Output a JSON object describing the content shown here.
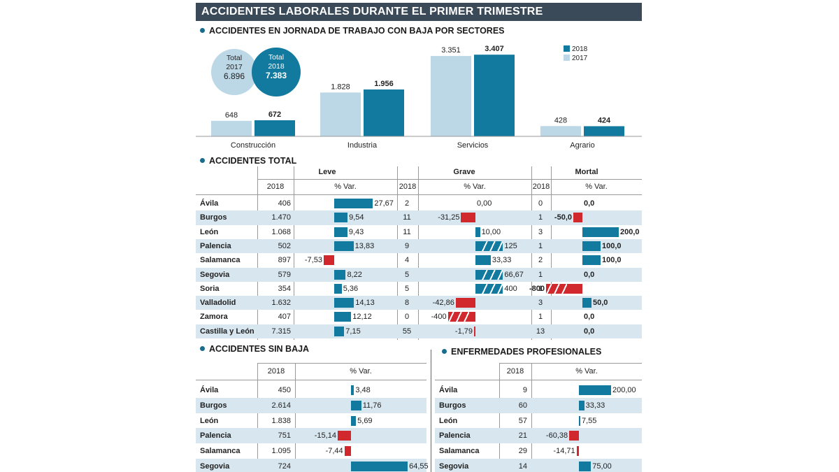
{
  "title": "ACCIDENTES LABORALES DURANTE EL PRIMER TRIMESTRE",
  "colors": {
    "y2018": "#137a9f",
    "y2017": "#bcd7e6",
    "negative": "#d0282c",
    "stripe": "#d7e6ef"
  },
  "chart_data": [
    {
      "type": "bar",
      "title": "ACCIDENTES EN JORNADA DE TRABAJO CON BAJA POR SECTORES",
      "categories": [
        "Construcción",
        "Industria",
        "Servicios",
        "Agrario"
      ],
      "series": [
        {
          "name": "2017",
          "values": [
            648,
            1828,
            3351,
            428
          ],
          "labels": [
            "648",
            "1.828",
            "3.351",
            "428"
          ]
        },
        {
          "name": "2018",
          "values": [
            672,
            1956,
            3407,
            424
          ],
          "labels": [
            "672",
            "1.956",
            "3.407",
            "424"
          ]
        }
      ],
      "legend": [
        "2018",
        "2017"
      ],
      "totals": [
        {
          "label": "Total",
          "year": "2017",
          "value": "6.896"
        },
        {
          "label": "Total",
          "year": "2018",
          "value": "7.383"
        }
      ]
    },
    {
      "type": "table",
      "title": "ACCIDENTES TOTAL",
      "groups": [
        "Leve",
        "Grave",
        "Mortal"
      ],
      "col_year": "2018",
      "col_var": "% Var.",
      "rows": [
        {
          "name": "Ávila",
          "leve": [
            "406",
            "27,67"
          ],
          "grave": [
            "2",
            "0,00"
          ],
          "mortal": [
            "0",
            "0,0"
          ]
        },
        {
          "name": "Burgos",
          "leve": [
            "1.470",
            "9,54"
          ],
          "grave": [
            "11",
            "-31,25"
          ],
          "mortal": [
            "1",
            "-50,0"
          ]
        },
        {
          "name": "León",
          "leve": [
            "1.068",
            "9,43"
          ],
          "grave": [
            "11",
            "10,00"
          ],
          "mortal": [
            "3",
            "200,0"
          ]
        },
        {
          "name": "Palencia",
          "leve": [
            "502",
            "13,83"
          ],
          "grave": [
            "9",
            "125"
          ],
          "mortal": [
            "1",
            "100,0"
          ]
        },
        {
          "name": "Salamanca",
          "leve": [
            "897",
            "-7,53"
          ],
          "grave": [
            "4",
            "33,33"
          ],
          "mortal": [
            "2",
            "100,0"
          ]
        },
        {
          "name": "Segovia",
          "leve": [
            "579",
            "8,22"
          ],
          "grave": [
            "5",
            "66,67"
          ],
          "mortal": [
            "1",
            "0,0"
          ]
        },
        {
          "name": "Soria",
          "leve": [
            "354",
            "5,36"
          ],
          "grave": [
            "5",
            "400"
          ],
          "mortal": [
            "1",
            "-800"
          ]
        },
        {
          "name": "Valladolid",
          "leve": [
            "1.632",
            "14,13"
          ],
          "grave": [
            "8",
            "-42,86"
          ],
          "mortal": [
            "3",
            "50,0"
          ]
        },
        {
          "name": "Zamora",
          "leve": [
            "407",
            "12,12"
          ],
          "grave": [
            "0",
            "-400"
          ],
          "mortal": [
            "1",
            "0,0"
          ]
        },
        {
          "name": "Castilla y León",
          "leve": [
            "7.315",
            "7,15"
          ],
          "grave": [
            "55",
            "-1,79"
          ],
          "mortal": [
            "13",
            "0,0"
          ]
        }
      ]
    },
    {
      "type": "table",
      "title": "ACCIDENTES SIN BAJA",
      "col_year": "2018",
      "col_var": "% Var.",
      "rows": [
        {
          "name": "Ávila",
          "value": "450",
          "var": "3,48"
        },
        {
          "name": "Burgos",
          "value": "2.614",
          "var": "11,76"
        },
        {
          "name": "León",
          "value": "1.838",
          "var": "5,69"
        },
        {
          "name": "Palencia",
          "value": "751",
          "var": "-15,14"
        },
        {
          "name": "Salamanca",
          "value": "1.095",
          "var": "-7,44"
        },
        {
          "name": "Segovia",
          "value": "724",
          "var": "64,55"
        }
      ]
    },
    {
      "type": "table",
      "title": "ENFERMEDADES PROFESIONALES",
      "col_year": "2018",
      "col_var": "% Var.",
      "rows": [
        {
          "name": "Ávila",
          "value": "9",
          "var": "200,00"
        },
        {
          "name": "Burgos",
          "value": "60",
          "var": "33,33"
        },
        {
          "name": "León",
          "value": "57",
          "var": "7,55"
        },
        {
          "name": "Palencia",
          "value": "21",
          "var": "-60,38"
        },
        {
          "name": "Salamanca",
          "value": "29",
          "var": "-14,71"
        },
        {
          "name": "Segovia",
          "value": "14",
          "var": "75,00"
        }
      ]
    }
  ]
}
